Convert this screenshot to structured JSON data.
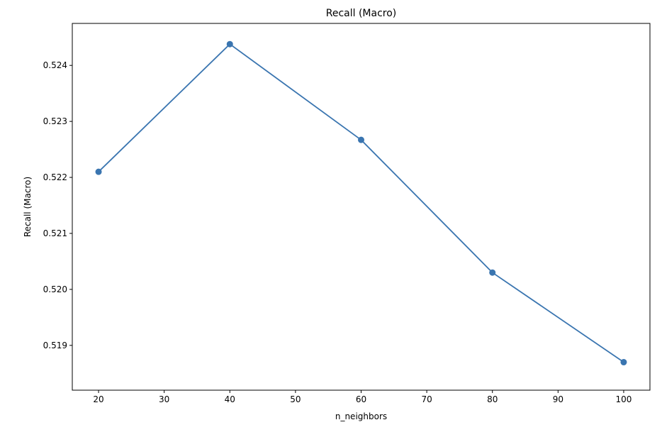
{
  "chart_data": {
    "type": "line",
    "title": "Recall (Macro)",
    "xlabel": "n_neighbors",
    "ylabel": "Recall (Macro)",
    "x": [
      20,
      40,
      60,
      80,
      100
    ],
    "series": [
      {
        "values": [
          0.5221,
          0.52438,
          0.52267,
          0.5203,
          0.5187
        ]
      }
    ],
    "xlim": [
      16,
      104
    ],
    "ylim": [
      0.5182,
      0.52475
    ],
    "xticks": [
      20,
      30,
      40,
      50,
      60,
      70,
      80,
      90,
      100
    ],
    "yticks": [
      0.519,
      0.52,
      0.521,
      0.522,
      0.523,
      0.524
    ],
    "xtick_labels": [
      "20",
      "30",
      "40",
      "50",
      "60",
      "70",
      "80",
      "90",
      "100"
    ],
    "ytick_labels": [
      "0.519",
      "0.520",
      "0.521",
      "0.522",
      "0.523",
      "0.524"
    ],
    "line_color": "#3a75b0",
    "marker": "circle",
    "grid": false,
    "legend": false
  }
}
